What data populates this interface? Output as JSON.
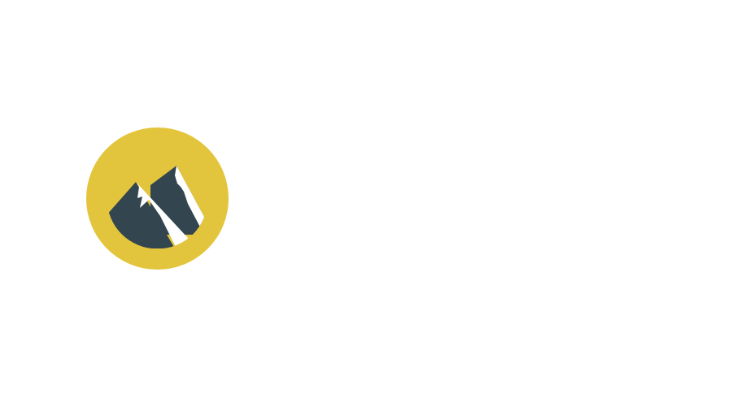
{
  "logo": {
    "icon": "mountain-logo-icon",
    "colors": {
      "badge": "#E3C53D",
      "mountain": "#33454F",
      "snow": "#FFFFFF"
    }
  }
}
